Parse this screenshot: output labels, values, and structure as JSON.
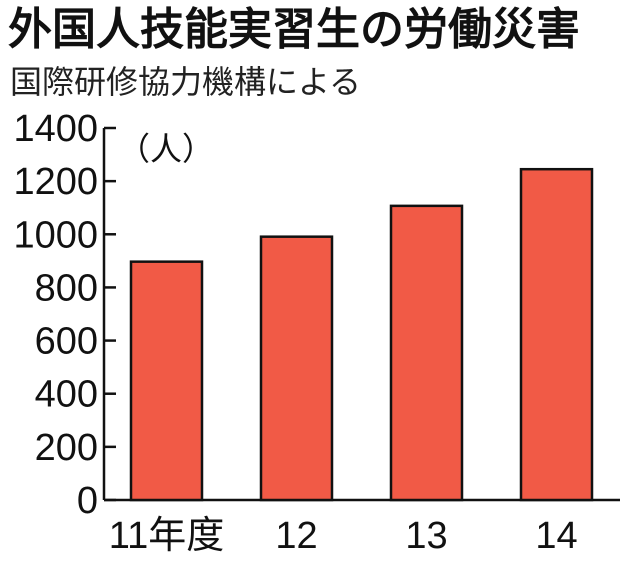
{
  "chart_data": {
    "type": "bar",
    "title": "外国人技能実習生の労働災害",
    "subtitle": "国際研修協力機構による",
    "ylabel": "（人）",
    "categories": [
      "11年度",
      "12",
      "13",
      "14"
    ],
    "values": [
      897,
      991,
      1107,
      1245
    ],
    "ylim": [
      0,
      1400
    ],
    "yticks": [
      0,
      200,
      400,
      600,
      800,
      1000,
      1200,
      1400
    ],
    "grid": false,
    "colors": {
      "bar": "#f15a46",
      "bar_stroke": "#111111",
      "axis": "#111111"
    }
  }
}
